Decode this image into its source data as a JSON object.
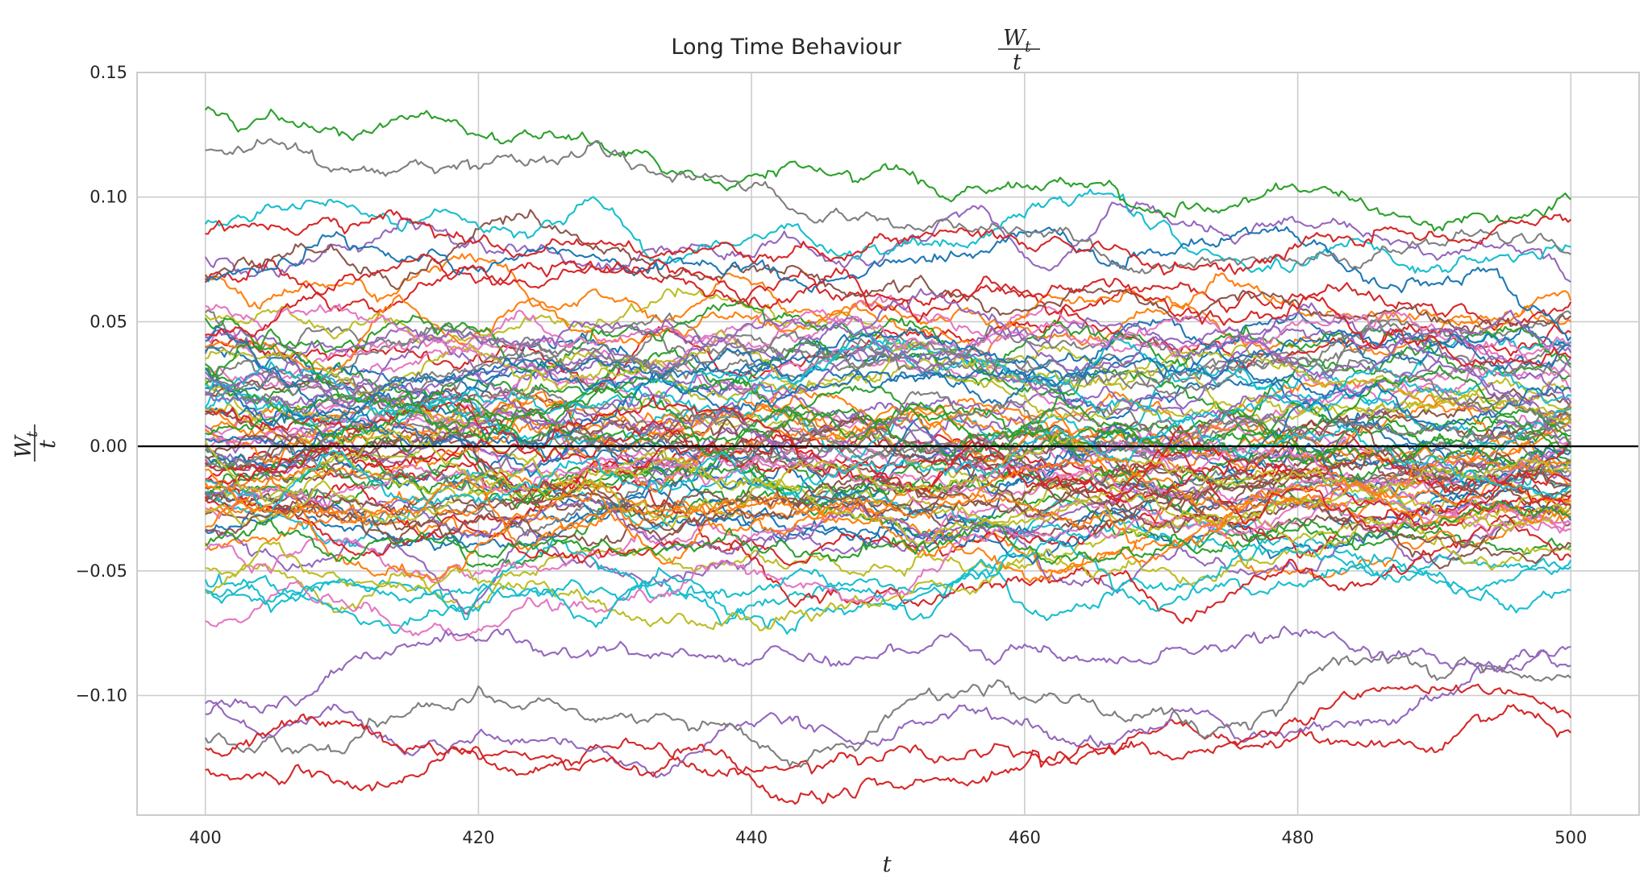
{
  "chart_data": {
    "type": "line",
    "title": "Long Time Behaviour",
    "title_math": {
      "numerator": "W",
      "subscript": "t",
      "denominator": "t"
    },
    "xlabel": "t",
    "ylabel_math": {
      "numerator": "W",
      "subscript": "t",
      "denominator": "t"
    },
    "xlim": [
      395,
      505
    ],
    "ylim": [
      -0.148,
      0.15
    ],
    "x_start": 400,
    "x_end": 500,
    "x_ticks": [
      400,
      420,
      440,
      460,
      480,
      500
    ],
    "x_tick_labels": [
      "400",
      "420",
      "440",
      "460",
      "480",
      "500"
    ],
    "y_ticks": [
      0.15,
      0.1,
      0.05,
      0.0,
      -0.05,
      -0.1
    ],
    "y_tick_labels": [
      "0.15",
      "0.10",
      "0.05",
      "0.00",
      "−0.05",
      "−0.10"
    ],
    "grid": true,
    "reference_line": {
      "y": 0,
      "color": "#000000"
    },
    "colors": [
      "#1f77b4",
      "#ff7f0e",
      "#2ca02c",
      "#d62728",
      "#9467bd",
      "#8c564b",
      "#e377c2",
      "#7f7f7f",
      "#bcbd22",
      "#17becf"
    ],
    "highlighted_series": [
      {
        "color": "#2ca02c",
        "values": [
          0.136,
          0.131,
          0.121,
          0.126,
          0.119,
          0.121,
          0.127,
          0.122,
          0.118,
          0.114,
          0.111,
          0.108,
          0.102,
          0.097,
          0.098,
          0.091,
          0.091,
          0.092,
          0.091,
          0.088,
          0.093,
          0.099
        ]
      },
      {
        "color": "#7f7f7f",
        "values": [
          0.118,
          0.117,
          0.111,
          0.109,
          0.111,
          0.117,
          0.119,
          0.114,
          0.108,
          0.103,
          0.101,
          0.096,
          0.092,
          0.097,
          0.087,
          0.083,
          0.078,
          0.077,
          0.08,
          0.082,
          0.081,
          0.077
        ]
      },
      {
        "color": "#d62728",
        "values": [
          -0.121,
          -0.119,
          -0.118,
          -0.126,
          -0.135,
          -0.131,
          -0.126,
          -0.121,
          -0.116,
          -0.124,
          -0.122,
          -0.121,
          -0.127,
          -0.123,
          -0.119,
          -0.122,
          -0.118,
          -0.111,
          -0.104,
          -0.101,
          -0.106,
          -0.109
        ]
      },
      {
        "color": "#9467bd",
        "values": [
          -0.111,
          -0.105,
          -0.098,
          -0.092,
          -0.089,
          -0.094,
          -0.095,
          -0.092,
          -0.089,
          -0.091,
          -0.093,
          -0.088,
          -0.085,
          -0.082,
          -0.087,
          -0.083,
          -0.085,
          -0.081,
          -0.087,
          -0.093,
          -0.09,
          -0.088
        ]
      },
      {
        "color": "#d62728",
        "values": [
          0.086,
          0.091,
          0.094,
          0.091,
          0.089,
          0.087,
          0.089,
          0.085,
          0.083,
          0.081,
          0.079,
          0.081,
          0.077,
          0.074,
          0.071,
          0.069,
          0.073,
          0.078,
          0.082,
          0.085,
          0.088,
          0.091
        ]
      }
    ],
    "background_series_count": 95,
    "background_mean_final": 0.0,
    "background_final_stdev": 0.042
  }
}
